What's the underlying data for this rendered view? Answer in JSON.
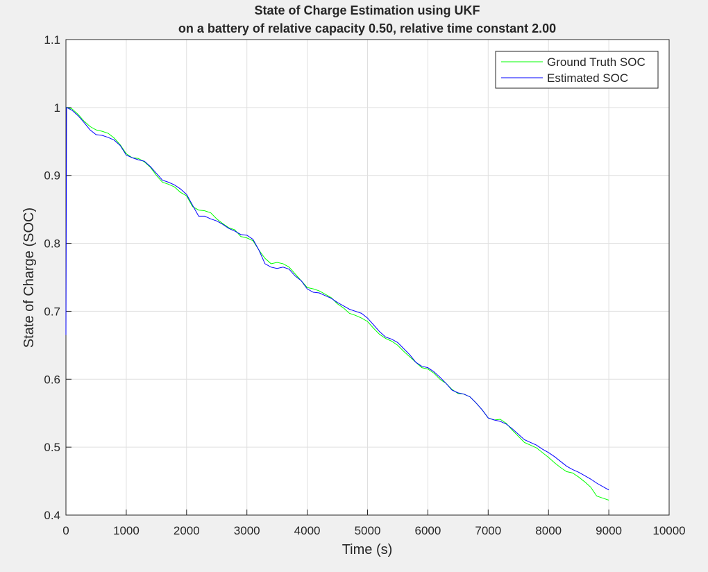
{
  "chart_data": {
    "type": "line",
    "title": [
      "State of Charge Estimation using UKF",
      "on a battery of relative capacity 0.50, relative time constant 2.00"
    ],
    "x_label": "Time (s)",
    "y_label": "State of Charge (SOC)",
    "xlim": [
      0,
      10000
    ],
    "ylim": [
      0.4,
      1.1
    ],
    "xticks": [
      0,
      1000,
      2000,
      3000,
      4000,
      5000,
      6000,
      7000,
      8000,
      9000,
      10000
    ],
    "yticks": [
      0.4,
      0.5,
      0.6,
      0.7,
      0.8,
      0.9,
      1,
      1.1
    ],
    "grid": true,
    "legend_position": "top-right",
    "x": [
      0,
      10,
      100,
      200,
      300,
      400,
      500,
      600,
      700,
      800,
      900,
      1000,
      1100,
      1200,
      1300,
      1400,
      1500,
      1600,
      1700,
      1800,
      1900,
      2000,
      2100,
      2200,
      2300,
      2400,
      2500,
      2600,
      2700,
      2800,
      2900,
      3000,
      3100,
      3200,
      3300,
      3400,
      3500,
      3600,
      3700,
      3800,
      3900,
      4000,
      4100,
      4200,
      4300,
      4400,
      4500,
      4600,
      4700,
      4800,
      4900,
      5000,
      5100,
      5200,
      5300,
      5400,
      5500,
      5600,
      5700,
      5800,
      5900,
      6000,
      6100,
      6200,
      6300,
      6400,
      6500,
      6600,
      6700,
      6800,
      6900,
      7000,
      7100,
      7200,
      7300,
      7400,
      7500,
      7600,
      7700,
      7800,
      7900,
      8000,
      8100,
      8200,
      8300,
      8400,
      8500,
      8600,
      8700,
      8800,
      8900,
      9000
    ],
    "series": [
      {
        "name": "Ground Truth SOC",
        "color": "#00ff00",
        "values": [
          1.0,
          1.0,
          0.998,
          0.99,
          0.98,
          0.972,
          0.967,
          0.965,
          0.962,
          0.955,
          0.945,
          0.932,
          0.926,
          0.925,
          0.92,
          0.912,
          0.9,
          0.89,
          0.887,
          0.883,
          0.875,
          0.87,
          0.854,
          0.849,
          0.848,
          0.845,
          0.836,
          0.829,
          0.823,
          0.82,
          0.81,
          0.808,
          0.804,
          0.79,
          0.778,
          0.77,
          0.772,
          0.77,
          0.765,
          0.755,
          0.745,
          0.735,
          0.733,
          0.73,
          0.725,
          0.72,
          0.711,
          0.705,
          0.697,
          0.694,
          0.69,
          0.685,
          0.675,
          0.666,
          0.66,
          0.656,
          0.65,
          0.641,
          0.633,
          0.625,
          0.617,
          0.615,
          0.609,
          0.6,
          0.594,
          0.585,
          0.579,
          0.578,
          0.574,
          0.565,
          0.555,
          0.543,
          0.54,
          0.541,
          0.535,
          0.525,
          0.516,
          0.507,
          0.503,
          0.499,
          0.492,
          0.485,
          0.477,
          0.47,
          0.464,
          0.462,
          0.456,
          0.449,
          0.441,
          0.428,
          0.425,
          0.422
        ]
      },
      {
        "name": "Estimated SOC",
        "color": "#0000ff",
        "values": [
          0.665,
          1.0,
          0.996,
          0.988,
          0.978,
          0.967,
          0.96,
          0.959,
          0.956,
          0.952,
          0.944,
          0.93,
          0.926,
          0.923,
          0.921,
          0.913,
          0.903,
          0.893,
          0.89,
          0.886,
          0.88,
          0.872,
          0.856,
          0.84,
          0.84,
          0.836,
          0.833,
          0.828,
          0.822,
          0.818,
          0.813,
          0.812,
          0.806,
          0.79,
          0.77,
          0.765,
          0.763,
          0.765,
          0.762,
          0.752,
          0.745,
          0.733,
          0.728,
          0.727,
          0.723,
          0.719,
          0.713,
          0.708,
          0.703,
          0.7,
          0.697,
          0.69,
          0.68,
          0.67,
          0.662,
          0.659,
          0.654,
          0.645,
          0.636,
          0.625,
          0.619,
          0.617,
          0.611,
          0.603,
          0.594,
          0.584,
          0.58,
          0.578,
          0.574,
          0.565,
          0.555,
          0.543,
          0.54,
          0.538,
          0.534,
          0.527,
          0.519,
          0.511,
          0.507,
          0.503,
          0.497,
          0.492,
          0.486,
          0.479,
          0.472,
          0.467,
          0.463,
          0.458,
          0.453,
          0.447,
          0.442,
          0.437
        ]
      }
    ]
  }
}
